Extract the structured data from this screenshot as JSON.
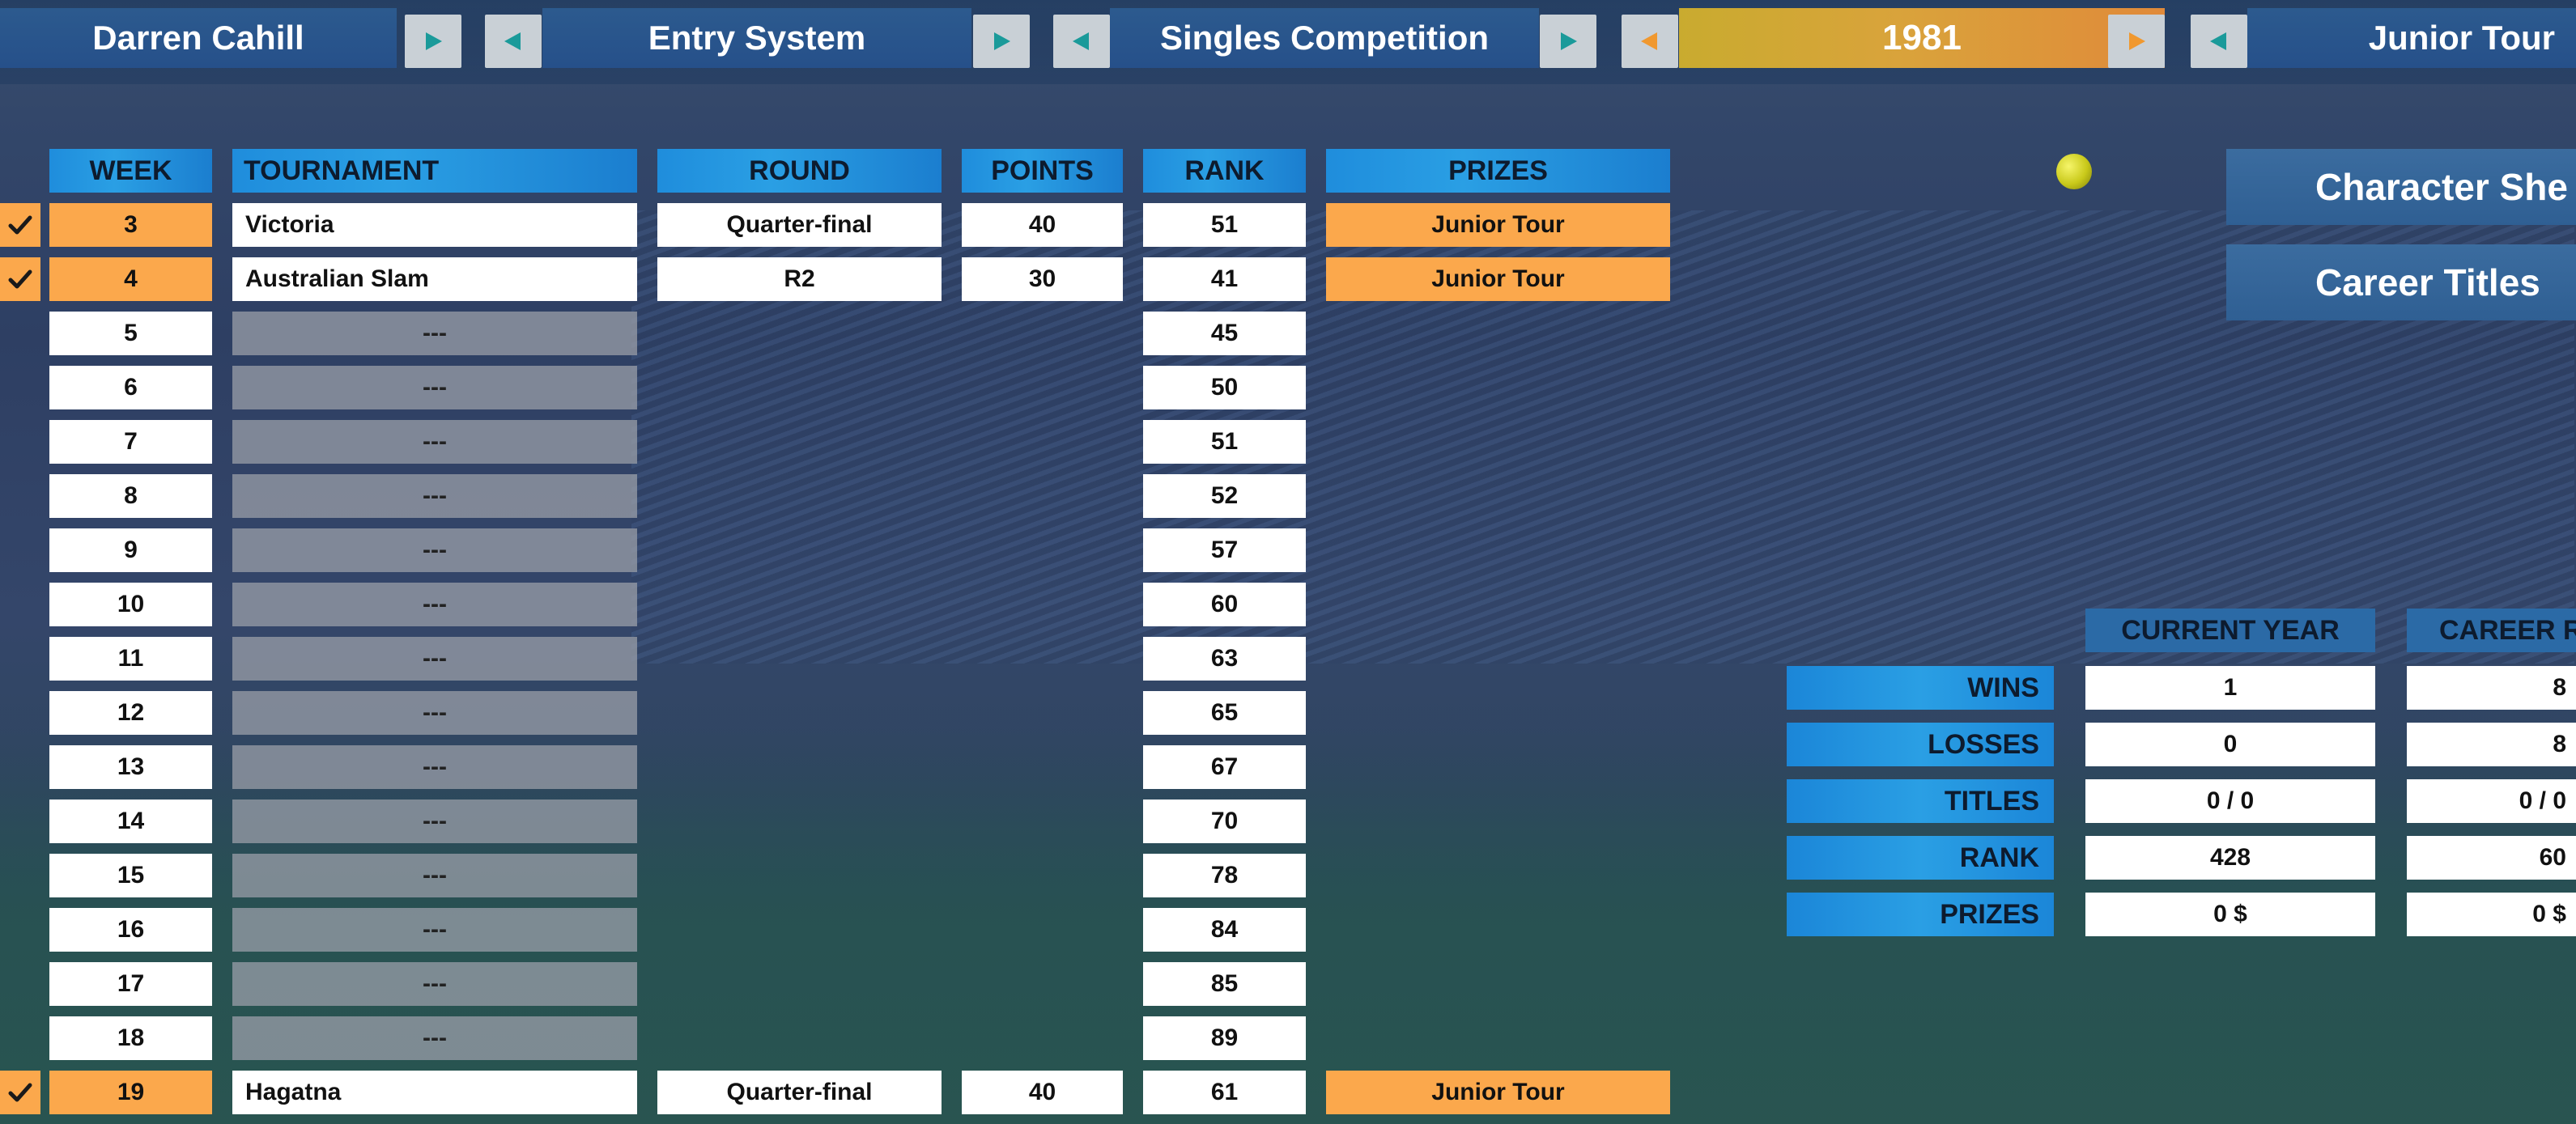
{
  "topbar": {
    "player_name": "Darren Cahill",
    "entry_label": "Entry System",
    "competition_label": "Singles Competition",
    "year_label": "1981",
    "tour_label": "Junior Tour"
  },
  "colors": {
    "accent_blue": "#2a9fe4",
    "highlight_orange": "#fba84c",
    "arrow_teal": "#1a9a9a",
    "arrow_orange": "#f0982f"
  },
  "schedule": {
    "headers": {
      "week": "WEEK",
      "tournament": "TOURNAMENT",
      "round": "ROUND",
      "points": "POINTS",
      "rank": "RANK",
      "prizes": "PRIZES"
    },
    "rows": [
      {
        "checked": true,
        "week": "3",
        "tournament": "Victoria",
        "round": "Quarter-final",
        "points": "40",
        "rank": "51",
        "prizes": "Junior Tour"
      },
      {
        "checked": true,
        "week": "4",
        "tournament": "Australian Slam",
        "round": "R2",
        "points": "30",
        "rank": "41",
        "prizes": "Junior Tour"
      },
      {
        "checked": false,
        "week": "5",
        "tournament": "---",
        "rank": "45"
      },
      {
        "checked": false,
        "week": "6",
        "tournament": "---",
        "rank": "50"
      },
      {
        "checked": false,
        "week": "7",
        "tournament": "---",
        "rank": "51"
      },
      {
        "checked": false,
        "week": "8",
        "tournament": "---",
        "rank": "52"
      },
      {
        "checked": false,
        "week": "9",
        "tournament": "---",
        "rank": "57"
      },
      {
        "checked": false,
        "week": "10",
        "tournament": "---",
        "rank": "60"
      },
      {
        "checked": false,
        "week": "11",
        "tournament": "---",
        "rank": "63"
      },
      {
        "checked": false,
        "week": "12",
        "tournament": "---",
        "rank": "65"
      },
      {
        "checked": false,
        "week": "13",
        "tournament": "---",
        "rank": "67"
      },
      {
        "checked": false,
        "week": "14",
        "tournament": "---",
        "rank": "70"
      },
      {
        "checked": false,
        "week": "15",
        "tournament": "---",
        "rank": "78"
      },
      {
        "checked": false,
        "week": "16",
        "tournament": "---",
        "rank": "84"
      },
      {
        "checked": false,
        "week": "17",
        "tournament": "---",
        "rank": "85"
      },
      {
        "checked": false,
        "week": "18",
        "tournament": "---",
        "rank": "89"
      },
      {
        "checked": true,
        "week": "19",
        "tournament": "Hagatna",
        "round": "Quarter-final",
        "points": "40",
        "rank": "61",
        "prizes": "Junior Tour"
      }
    ]
  },
  "side_buttons": {
    "character_sheet": "Character She",
    "career_titles": "Career Titles"
  },
  "stats": {
    "headers": {
      "current_year": "CURRENT YEAR",
      "career": "CAREER R"
    },
    "rows": [
      {
        "label": "WINS",
        "current": "1",
        "career": "8"
      },
      {
        "label": "LOSSES",
        "current": "0",
        "career": "8"
      },
      {
        "label": "TITLES",
        "current": "0 / 0",
        "career": "0 / 0"
      },
      {
        "label": "RANK",
        "current": "428",
        "career": "60"
      },
      {
        "label": "PRIZES",
        "current": "0 $",
        "career": "0 $"
      }
    ]
  }
}
